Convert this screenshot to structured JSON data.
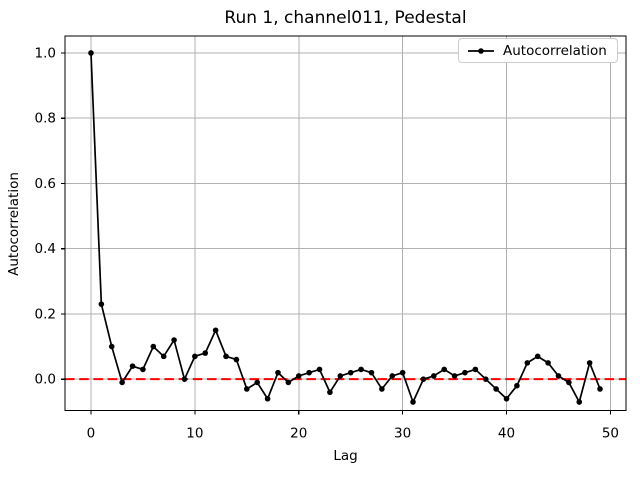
{
  "chart": {
    "title": "Run 1, channel011, Pedestal",
    "xlabel": "Lag",
    "ylabel": "Autocorrelation",
    "legend_label": "Autocorrelation",
    "legend_position": "upper right"
  },
  "chart_data": {
    "type": "line",
    "title": "Run 1, channel011, Pedestal",
    "xlabel": "Lag",
    "ylabel": "Autocorrelation",
    "legend": [
      "Autocorrelation"
    ],
    "marker": "circle",
    "line_color": "#000000",
    "grid": true,
    "grid_color": "#b0b0b0",
    "zero_line": {
      "y": 0.0,
      "color": "#ff0000",
      "style": "dashed"
    },
    "xlim": [
      -2.5,
      51.5
    ],
    "ylim": [
      -0.096,
      1.052
    ],
    "x_ticks": {
      "values": [
        0,
        10,
        20,
        30,
        40,
        50
      ],
      "labels": [
        "0",
        "10",
        "20",
        "30",
        "40",
        "50"
      ]
    },
    "y_ticks": {
      "values": [
        0.0,
        0.2,
        0.4,
        0.6,
        0.8,
        1.0
      ],
      "labels": [
        "0.0",
        "0.2",
        "0.4",
        "0.6",
        "0.8",
        "1.0"
      ]
    },
    "x": [
      0,
      1,
      2,
      3,
      4,
      5,
      6,
      7,
      8,
      9,
      10,
      11,
      12,
      13,
      14,
      15,
      16,
      17,
      18,
      19,
      20,
      21,
      22,
      23,
      24,
      25,
      26,
      27,
      28,
      29,
      30,
      31,
      32,
      33,
      34,
      35,
      36,
      37,
      38,
      39,
      40,
      41,
      42,
      43,
      44,
      45,
      46,
      47,
      48,
      49
    ],
    "series": [
      {
        "name": "Autocorrelation",
        "values": [
          1.0,
          0.23,
          0.1,
          -0.01,
          0.04,
          0.03,
          0.1,
          0.07,
          0.12,
          0.0,
          0.07,
          0.08,
          0.15,
          0.07,
          0.06,
          -0.03,
          -0.01,
          -0.06,
          0.02,
          -0.01,
          0.01,
          0.02,
          0.03,
          -0.04,
          0.01,
          0.02,
          0.03,
          0.02,
          -0.03,
          0.01,
          0.02,
          -0.07,
          0.0,
          0.01,
          0.03,
          0.01,
          0.02,
          0.03,
          0.0,
          -0.03,
          -0.06,
          -0.02,
          0.05,
          0.07,
          0.05,
          0.01,
          -0.01,
          -0.07,
          0.05,
          -0.03
        ]
      }
    ]
  }
}
